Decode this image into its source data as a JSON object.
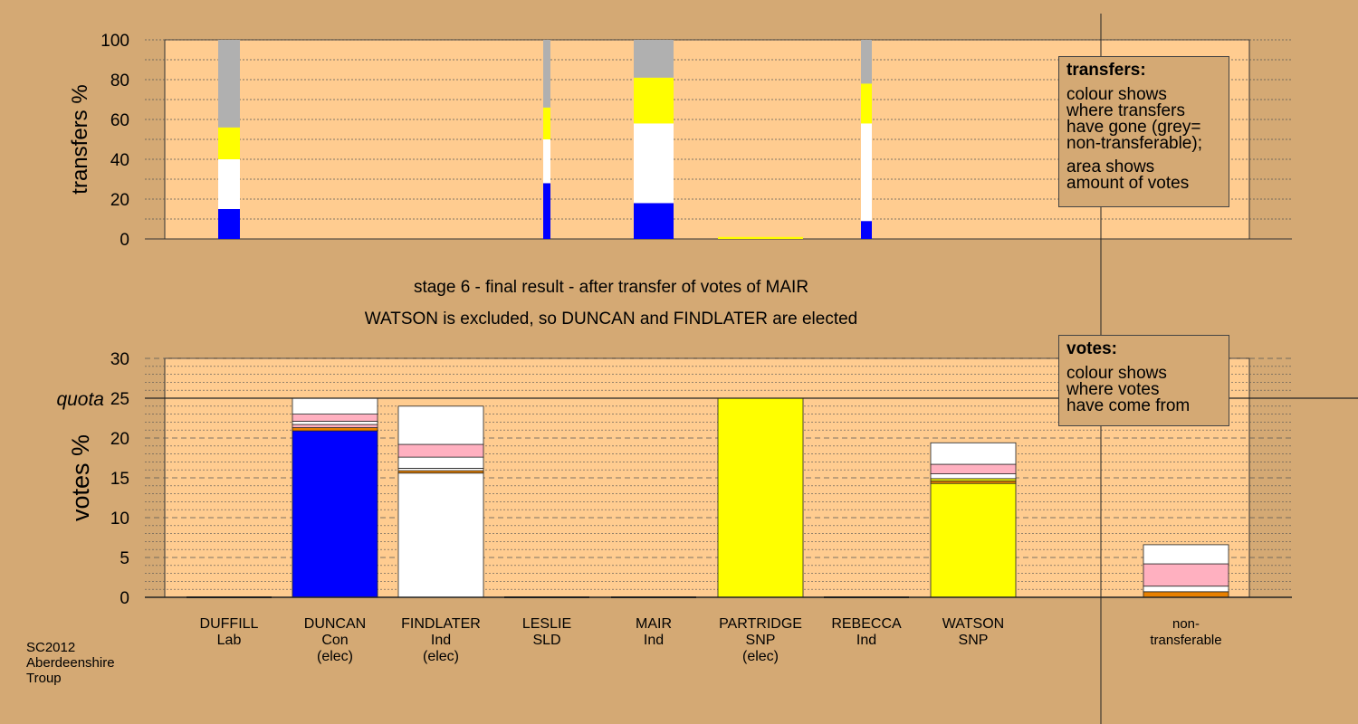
{
  "colors": {
    "page_bg": "#d4a974",
    "plot_bg": "#ffcc90",
    "Con": "#0000ff",
    "Ind": "#ffffff",
    "SNP": "#ffff00",
    "non_transferable": "#b0b0b0",
    "pink": "#ffb0c0",
    "orange": "#e88000"
  },
  "legend_transfers": {
    "title": "transfers:",
    "lines_a": [
      "colour shows",
      "where transfers",
      "have gone (grey=",
      "non-transferable);"
    ],
    "lines_b": [
      "area shows",
      "amount of votes"
    ]
  },
  "legend_votes": {
    "title": "votes:",
    "lines": [
      "colour shows",
      "where votes",
      "have come from"
    ]
  },
  "source": [
    "SC2012",
    "Aberdeenshire",
    "Troup"
  ],
  "chart_data": [
    {
      "type": "bar",
      "stacked": true,
      "title": "",
      "ylabel": "transfers %",
      "ylim": [
        0,
        100
      ],
      "yticks": [
        0,
        20,
        40,
        60,
        80,
        100
      ],
      "grid": true,
      "note": "bar width shows amount of votes",
      "bars": [
        {
          "candidate": "DUFFILL",
          "segments": [
            {
              "color": "Con",
              "value": 15
            },
            {
              "color": "Ind",
              "value": 25
            },
            {
              "color": "SNP",
              "value": 16
            },
            {
              "color": "non_transferable",
              "value": 44
            }
          ]
        },
        {
          "candidate": "LESLIE",
          "segments": [
            {
              "color": "Con",
              "value": 28
            },
            {
              "color": "Ind",
              "value": 22
            },
            {
              "color": "SNP",
              "value": 16
            },
            {
              "color": "non_transferable",
              "value": 34
            }
          ]
        },
        {
          "candidate": "MAIR",
          "segments": [
            {
              "color": "Con",
              "value": 18
            },
            {
              "color": "Ind",
              "value": 40
            },
            {
              "color": "SNP",
              "value": 23
            },
            {
              "color": "non_transferable",
              "value": 19
            }
          ]
        },
        {
          "candidate": "PARTRIDGE",
          "segments": [
            {
              "color": "SNP",
              "value": 1
            }
          ]
        },
        {
          "candidate": "REBECCA",
          "segments": [
            {
              "color": "Con",
              "value": 9
            },
            {
              "color": "Ind",
              "value": 49
            },
            {
              "color": "SNP",
              "value": 20
            },
            {
              "color": "non_transferable",
              "value": 22
            }
          ]
        }
      ]
    },
    {
      "type": "bar",
      "stacked": true,
      "title": "stage 6 - final result - after transfer of votes of MAIR",
      "subtitle": "WATSON is excluded, so DUNCAN and FINDLATER are elected",
      "ylabel": "votes %",
      "ylim": [
        0,
        30
      ],
      "yticks": [
        0,
        5,
        10,
        15,
        20,
        25,
        30
      ],
      "quota": 25,
      "quota_label": "quota",
      "grid": true,
      "categories": [
        [
          "DUFFILL",
          "Lab",
          ""
        ],
        [
          "DUNCAN",
          "Con",
          "(elec)"
        ],
        [
          "FINDLATER",
          "Ind",
          "(elec)"
        ],
        [
          "LESLIE",
          "SLD",
          ""
        ],
        [
          "MAIR",
          "Ind",
          ""
        ],
        [
          "PARTRIDGE",
          "SNP",
          "(elec)"
        ],
        [
          "REBECCA",
          "Ind",
          ""
        ],
        [
          "WATSON",
          "SNP",
          ""
        ],
        [
          "non-",
          "transferable",
          ""
        ]
      ],
      "bars": [
        {
          "candidate": "DUFFILL",
          "segments": []
        },
        {
          "candidate": "DUNCAN",
          "segments": [
            {
              "color": "Con",
              "value": 20.9
            },
            {
              "color": "orange",
              "value": 0.4
            },
            {
              "color": "pink",
              "value": 0.4
            },
            {
              "color": "Ind",
              "value": 0.4
            },
            {
              "color": "pink",
              "value": 0.9
            },
            {
              "color": "Ind",
              "value": 2.0
            }
          ]
        },
        {
          "candidate": "FINDLATER",
          "segments": [
            {
              "color": "Ind",
              "value": 15.6
            },
            {
              "color": "orange",
              "value": 0.3
            },
            {
              "color": "Ind",
              "value": 0.3
            },
            {
              "color": "Ind",
              "value": 1.4
            },
            {
              "color": "pink",
              "value": 1.6
            },
            {
              "color": "Ind",
              "value": 4.8
            }
          ]
        },
        {
          "candidate": "LESLIE",
          "segments": []
        },
        {
          "candidate": "MAIR",
          "segments": []
        },
        {
          "candidate": "PARTRIDGE",
          "segments": [
            {
              "color": "SNP",
              "value": 25.0
            }
          ]
        },
        {
          "candidate": "REBECCA",
          "segments": []
        },
        {
          "candidate": "WATSON",
          "segments": [
            {
              "color": "SNP",
              "value": 14.3
            },
            {
              "color": "orange",
              "value": 0.3
            },
            {
              "color": "SNP",
              "value": 0.3
            },
            {
              "color": "Ind",
              "value": 0.6
            },
            {
              "color": "pink",
              "value": 1.2
            },
            {
              "color": "Ind",
              "value": 2.7
            }
          ]
        },
        {
          "candidate": "non-transferable",
          "segments": [
            {
              "color": "orange",
              "value": 0.7
            },
            {
              "color": "Ind",
              "value": 0.7
            },
            {
              "color": "pink",
              "value": 2.8
            },
            {
              "color": "Ind",
              "value": 2.4
            }
          ]
        }
      ]
    }
  ]
}
